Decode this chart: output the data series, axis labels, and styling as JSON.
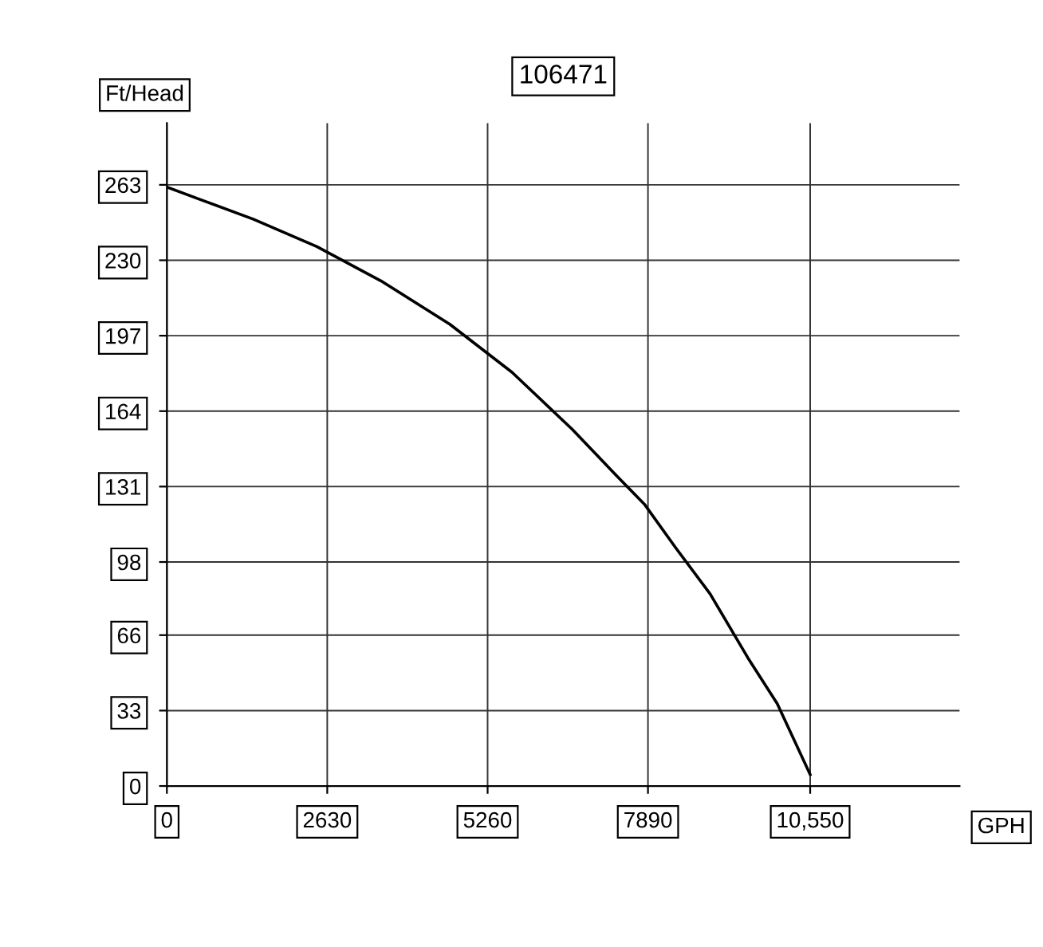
{
  "chart_data": {
    "type": "line",
    "title": "106471",
    "xlabel": "GPH",
    "ylabel": "Ft/Head",
    "x": [
      0,
      1415,
      2460,
      3510,
      4640,
      5660,
      6650,
      7330,
      7840,
      8350,
      8910,
      9530,
      10010,
      10550
    ],
    "series": [
      {
        "color": "#000000",
        "values": [
          262,
          248,
          236,
          221,
          202,
          181,
          156,
          137,
          123,
          104,
          84,
          56,
          36,
          5
        ]
      }
    ],
    "xlim": [
      0,
      13000
    ],
    "xticks": [
      0,
      2630,
      5260,
      7890,
      {
        "value": 10550,
        "label": "10,550"
      }
    ],
    "ylim": [
      0,
      290
    ],
    "yticks": [
      0,
      33,
      66,
      98,
      131,
      164,
      197,
      230,
      263
    ],
    "grid": true,
    "legend": false,
    "marker": "none",
    "line_style": "solid"
  }
}
